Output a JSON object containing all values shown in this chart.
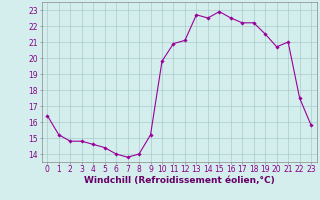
{
  "hours": [
    0,
    1,
    2,
    3,
    4,
    5,
    6,
    7,
    8,
    9,
    10,
    11,
    12,
    13,
    14,
    15,
    16,
    17,
    18,
    19,
    20,
    21,
    22,
    23
  ],
  "values": [
    16.4,
    15.2,
    14.8,
    14.8,
    14.6,
    14.4,
    14.0,
    13.8,
    14.0,
    15.2,
    19.8,
    20.9,
    21.1,
    22.7,
    22.5,
    22.9,
    22.5,
    22.2,
    22.2,
    21.5,
    20.7,
    21.0,
    17.5,
    15.8
  ],
  "line_color": "#990099",
  "marker": "D",
  "markersize": 1.8,
  "linewidth": 0.8,
  "bg_color": "#d4eeee",
  "grid_color": "#aacccc",
  "ylabel_ticks": [
    14,
    15,
    16,
    17,
    18,
    19,
    20,
    21,
    22,
    23
  ],
  "ylim": [
    13.5,
    23.5
  ],
  "xlim": [
    -0.5,
    23.5
  ],
  "xlabel": "Windchill (Refroidissement éolien,°C)",
  "xlabel_fontsize": 6.5,
  "tick_fontsize": 5.5,
  "tick_color": "#880088",
  "xlabel_color": "#660066"
}
